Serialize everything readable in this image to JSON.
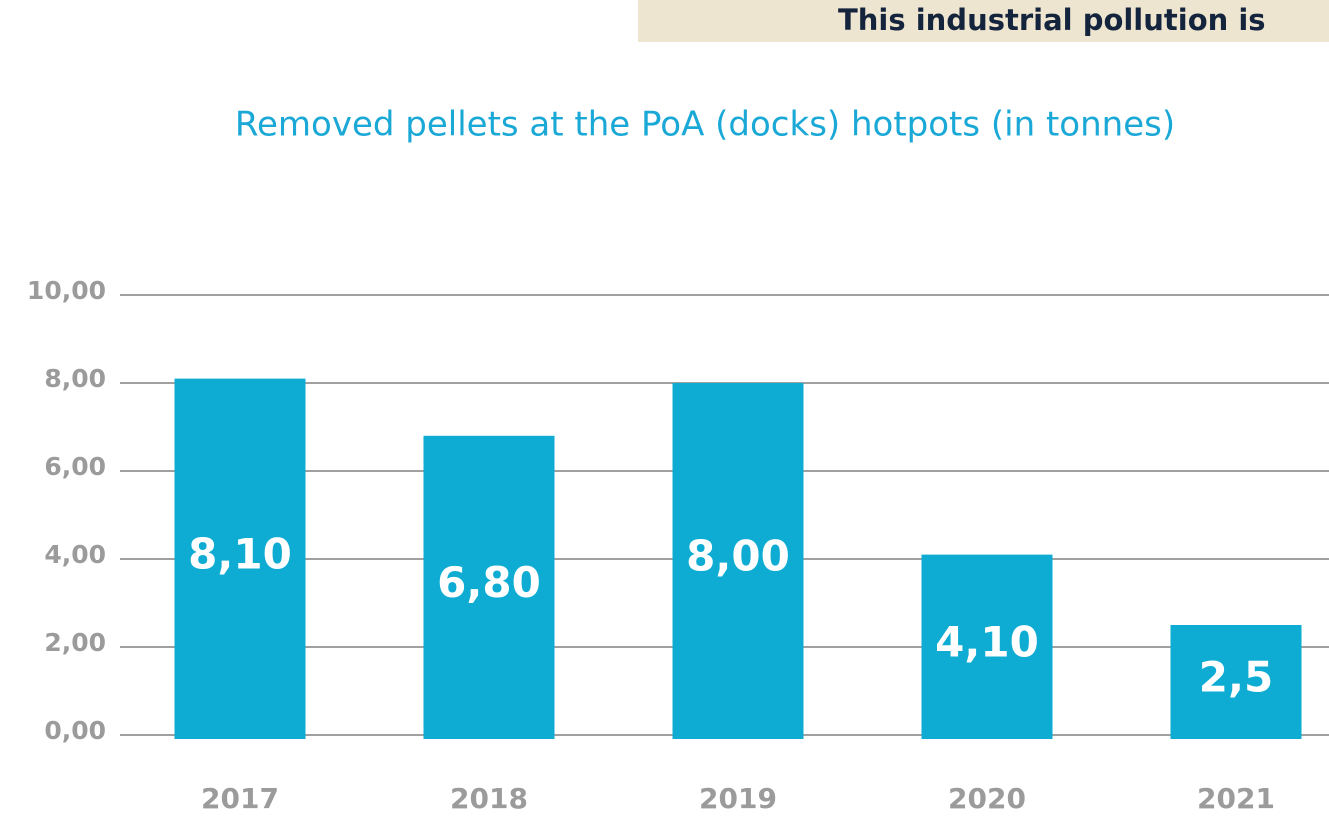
{
  "banner": "This industrial pollution is",
  "chart_data": {
    "type": "bar",
    "title": "Removed pellets at the PoA (docks) hotpots (in tonnes)",
    "categories": [
      "2017",
      "2018",
      "2019",
      "2020",
      "2021"
    ],
    "values": [
      8.1,
      6.8,
      8.0,
      4.1,
      2.5
    ],
    "value_labels": [
      "8,10",
      "6,80",
      "8,00",
      "4,10",
      "2,5"
    ],
    "color": "#0eacd3",
    "ylim": [
      0,
      10
    ],
    "yticks": [
      {
        "value": 0,
        "label": "0,00"
      },
      {
        "value": 2,
        "label": "2,00"
      },
      {
        "value": 4,
        "label": "4,00"
      },
      {
        "value": 6,
        "label": "6,00"
      },
      {
        "value": 8,
        "label": "8,00"
      },
      {
        "value": 10,
        "label": "10,00"
      }
    ],
    "grid": true
  }
}
